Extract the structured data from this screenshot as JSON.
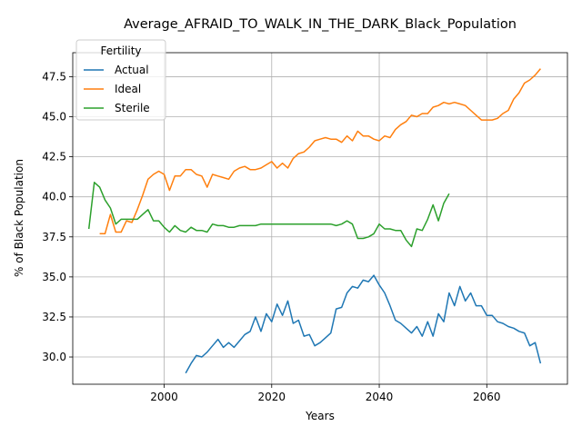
{
  "chart_data": {
    "type": "line",
    "title": "Average_AFRAID_TO_WALK_IN_THE_DARK_Black_Population",
    "xlabel": "Years",
    "ylabel": "% of Black Population",
    "xlim": [
      1983,
      2075
    ],
    "ylim": [
      28.3,
      49.0
    ],
    "xticks": [
      2000,
      2020,
      2040,
      2060
    ],
    "yticks": [
      30.0,
      32.5,
      35.0,
      37.5,
      40.0,
      42.5,
      45.0,
      47.5
    ],
    "grid": true,
    "legend": {
      "title": "Fertility",
      "position": "top-left"
    },
    "series": [
      {
        "name": "Actual",
        "color": "#1f77b4",
        "x": [
          2004,
          2005,
          2006,
          2007,
          2008,
          2009,
          2010,
          2011,
          2012,
          2013,
          2014,
          2015,
          2016,
          2017,
          2018,
          2019,
          2020,
          2021,
          2022,
          2023,
          2024,
          2025,
          2026,
          2027,
          2028,
          2029,
          2030,
          2031,
          2032,
          2033,
          2034,
          2035,
          2036,
          2037,
          2038,
          2039,
          2040,
          2041,
          2042,
          2043,
          2044,
          2045,
          2046,
          2047,
          2048,
          2049,
          2050,
          2051,
          2052,
          2053,
          2054,
          2055,
          2056,
          2057,
          2058,
          2059,
          2060,
          2061,
          2062,
          2063,
          2064,
          2065,
          2066,
          2067,
          2068,
          2069,
          2070
        ],
        "y": [
          29.0,
          29.6,
          30.1,
          30.0,
          30.3,
          30.7,
          31.1,
          30.6,
          30.9,
          30.6,
          31.0,
          31.4,
          31.6,
          32.5,
          31.6,
          32.7,
          32.2,
          33.3,
          32.6,
          33.5,
          32.1,
          32.3,
          31.3,
          31.4,
          30.7,
          30.9,
          31.2,
          31.5,
          33.0,
          33.1,
          34.0,
          34.4,
          34.3,
          34.8,
          34.7,
          35.1,
          34.5,
          34.0,
          33.2,
          32.3,
          32.1,
          31.8,
          31.5,
          31.9,
          31.3,
          32.2,
          31.3,
          32.7,
          32.2,
          34.0,
          33.2,
          34.4,
          33.5,
          34.0,
          33.2,
          33.2,
          32.6,
          32.6,
          32.2,
          32.1,
          31.9,
          31.8,
          31.6,
          31.5,
          30.7,
          30.9,
          29.6
        ]
      },
      {
        "name": "Ideal",
        "color": "#ff7f0e",
        "x": [
          1988,
          1989,
          1990,
          1991,
          1992,
          1993,
          1994,
          1995,
          1996,
          1997,
          1998,
          1999,
          2000,
          2001,
          2002,
          2003,
          2004,
          2005,
          2006,
          2007,
          2008,
          2009,
          2010,
          2011,
          2012,
          2013,
          2014,
          2015,
          2016,
          2017,
          2018,
          2019,
          2020,
          2021,
          2022,
          2023,
          2024,
          2025,
          2026,
          2027,
          2028,
          2029,
          2030,
          2031,
          2032,
          2033,
          2034,
          2035,
          2036,
          2037,
          2038,
          2039,
          2040,
          2041,
          2042,
          2043,
          2044,
          2045,
          2046,
          2047,
          2048,
          2049,
          2050,
          2051,
          2052,
          2053,
          2054,
          2055,
          2056,
          2057,
          2058,
          2059,
          2060,
          2061,
          2062,
          2063,
          2064,
          2065,
          2066,
          2067,
          2068,
          2069,
          2070
        ],
        "y": [
          37.7,
          37.7,
          38.9,
          37.8,
          37.8,
          38.5,
          38.4,
          39.2,
          40.1,
          41.1,
          41.4,
          41.6,
          41.4,
          40.4,
          41.3,
          41.3,
          41.7,
          41.7,
          41.4,
          41.3,
          40.6,
          41.4,
          41.3,
          41.2,
          41.1,
          41.6,
          41.8,
          41.9,
          41.7,
          41.7,
          41.8,
          42.0,
          42.2,
          41.8,
          42.1,
          41.8,
          42.4,
          42.7,
          42.8,
          43.1,
          43.5,
          43.6,
          43.7,
          43.6,
          43.6,
          43.4,
          43.8,
          43.5,
          44.1,
          43.8,
          43.8,
          43.6,
          43.5,
          43.8,
          43.7,
          44.2,
          44.5,
          44.7,
          45.1,
          45.0,
          45.2,
          45.2,
          45.6,
          45.7,
          45.9,
          45.8,
          45.9,
          45.8,
          45.7,
          45.4,
          45.1,
          44.8,
          44.8,
          44.8,
          44.9,
          45.2,
          45.4,
          46.1,
          46.5,
          47.1,
          47.3,
          47.6,
          48.0
        ]
      },
      {
        "name": "Sterile",
        "color": "#2ca02c",
        "x": [
          1986,
          1987,
          1988,
          1989,
          1990,
          1991,
          1992,
          1993,
          1994,
          1995,
          1996,
          1997,
          1998,
          1999,
          2000,
          2001,
          2002,
          2003,
          2004,
          2005,
          2006,
          2007,
          2008,
          2009,
          2010,
          2011,
          2012,
          2013,
          2014,
          2015,
          2016,
          2017,
          2018,
          2019,
          2020,
          2021,
          2022,
          2023,
          2024,
          2025,
          2026,
          2027,
          2028,
          2029,
          2030,
          2031,
          2032,
          2033,
          2034,
          2035,
          2036,
          2037,
          2038,
          2039,
          2040,
          2041,
          2042,
          2043,
          2044,
          2045,
          2046,
          2047,
          2048,
          2049,
          2050,
          2051,
          2052,
          2053
        ],
        "y": [
          38.0,
          40.9,
          40.6,
          39.8,
          39.3,
          38.3,
          38.6,
          38.6,
          38.6,
          38.6,
          38.9,
          39.2,
          38.5,
          38.5,
          38.1,
          37.8,
          38.2,
          37.9,
          37.8,
          38.1,
          37.9,
          37.9,
          37.8,
          38.3,
          38.2,
          38.2,
          38.1,
          38.1,
          38.2,
          38.2,
          38.2,
          38.2,
          38.3,
          38.3,
          38.3,
          38.3,
          38.3,
          38.3,
          38.3,
          38.3,
          38.3,
          38.3,
          38.3,
          38.3,
          38.3,
          38.3,
          38.2,
          38.3,
          38.5,
          38.3,
          37.4,
          37.4,
          37.5,
          37.7,
          38.3,
          38.0,
          38.0,
          37.9,
          37.9,
          37.3,
          36.9,
          38.0,
          37.9,
          38.6,
          39.5,
          38.5,
          39.6,
          40.2
        ]
      }
    ]
  }
}
